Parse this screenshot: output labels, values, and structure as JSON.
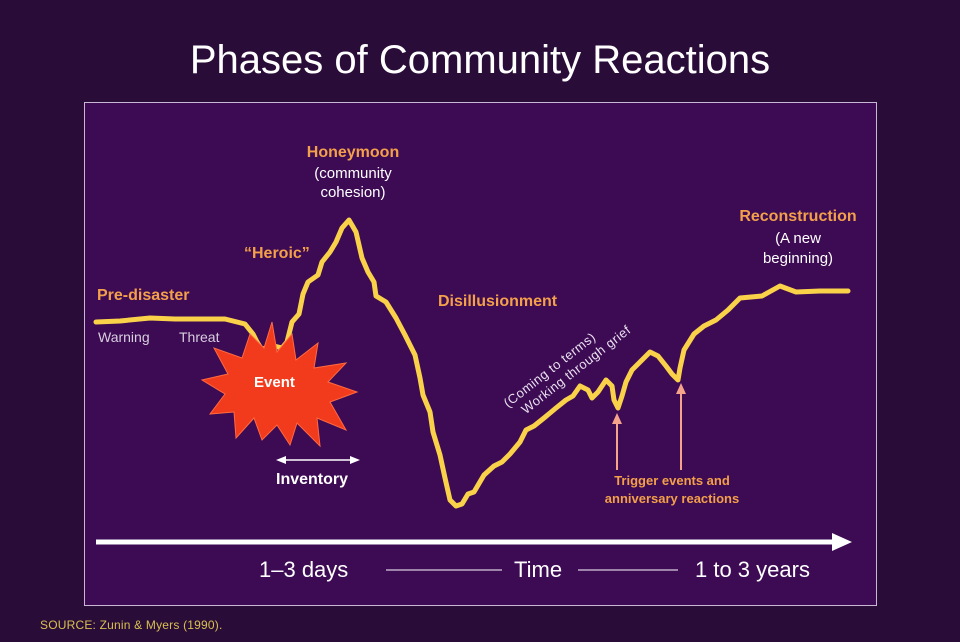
{
  "title": "Phases of Community Reactions",
  "phases": {
    "pre_disaster": "Pre-disaster",
    "warning": "Warning",
    "threat": "Threat",
    "event": "Event",
    "heroic": "“Heroic”",
    "honeymoon": "Honeymoon",
    "honeymoon_sub1": "(community",
    "honeymoon_sub2": "cohesion)",
    "inventory": "Inventory",
    "disillusionment": "Disillusionment",
    "coming_to_terms1": "(Coming to terms)",
    "coming_to_terms2": "Working through grief",
    "trigger1": "Trigger events and",
    "trigger2": "anniversary reactions",
    "reconstruction": "Reconstruction",
    "reconstruction_sub1": "(A new",
    "reconstruction_sub2": "beginning)"
  },
  "axis": {
    "left": "1–3 days",
    "center": "Time",
    "right": "1 to 3 years"
  },
  "source": "SOURCE:  Zunin & Myers (1990).",
  "colors": {
    "background": "#2a0c38",
    "panel": "#3d0a54",
    "curve": "#f9d24a",
    "label_orange": "#f3a04a",
    "event_burst": "#f23a1c",
    "trigger_arrow": "#f5a38a"
  }
}
